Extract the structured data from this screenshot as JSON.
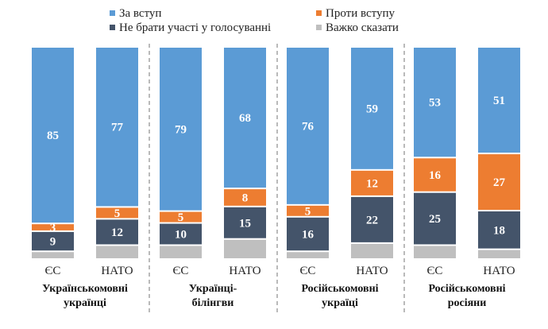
{
  "chart_data": {
    "type": "bar",
    "stacked": true,
    "orientation": "vertical",
    "legend": [
      {
        "key": "for",
        "label": "За вступ",
        "color": "#5b9bd5"
      },
      {
        "key": "against",
        "label": "Проти вступу",
        "color": "#ed7d31"
      },
      {
        "key": "abstain",
        "label": "Не брати участі у голосуванні",
        "color": "#44546a"
      },
      {
        "key": "hard",
        "label": "Важко сказати",
        "color": "#bfbfbf"
      }
    ],
    "legend_position": "top",
    "groups": [
      {
        "label_lines": [
          "Українськомовні",
          "українці"
        ],
        "bars": [
          {
            "category": "ЄС",
            "for": 85,
            "against": 3,
            "abstain": 9,
            "hard": 3
          },
          {
            "category": "НАТО",
            "for": 77,
            "against": 5,
            "abstain": 12,
            "hard": 6
          }
        ]
      },
      {
        "label_lines": [
          "Українці-",
          "білінгви"
        ],
        "bars": [
          {
            "category": "ЄС",
            "for": 79,
            "against": 5,
            "abstain": 10,
            "hard": 6
          },
          {
            "category": "НАТО",
            "for": 68,
            "against": 8,
            "abstain": 15,
            "hard": 9
          }
        ]
      },
      {
        "label_lines": [
          "Російськомовні",
          "україці"
        ],
        "bars": [
          {
            "category": "ЄС",
            "for": 76,
            "against": 5,
            "abstain": 16,
            "hard": 3
          },
          {
            "category": "НАТО",
            "for": 59,
            "against": 12,
            "abstain": 22,
            "hard": 7
          }
        ]
      },
      {
        "label_lines": [
          "Російськомовні",
          "росіяни"
        ],
        "bars": [
          {
            "category": "ЄС",
            "for": 53,
            "against": 16,
            "abstain": 25,
            "hard": 6
          },
          {
            "category": "НАТО",
            "for": 51,
            "against": 27,
            "abstain": 18,
            "hard": 4
          }
        ]
      }
    ],
    "ylim": [
      0,
      100
    ],
    "grid": false
  }
}
